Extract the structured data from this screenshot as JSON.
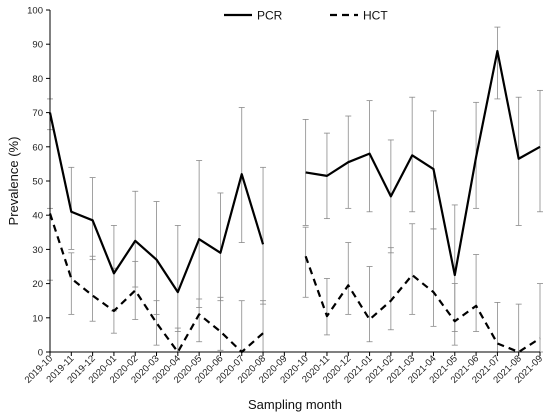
{
  "chart_data": {
    "type": "line",
    "xlabel": "Sampling month",
    "ylabel": "Prevalence (%)",
    "ylim": [
      0,
      100
    ],
    "yticks": [
      0,
      10,
      20,
      30,
      40,
      50,
      60,
      70,
      80,
      90,
      100
    ],
    "grid": false,
    "legend_position": "top-center",
    "categories": [
      "2019-10",
      "2019-11",
      "2019-12",
      "2020-01",
      "2020-02",
      "2020-03",
      "2020-04",
      "2020-05",
      "2020-06",
      "2020-07",
      "2020-08",
      "2020-09",
      "2020-10",
      "2020-11",
      "2020-12",
      "2021-01",
      "2021-02",
      "2021-03",
      "2021-04",
      "2021-05",
      "2021-06",
      "2021-07",
      "2021-08",
      "2021-09"
    ],
    "series": [
      {
        "name": "PCR",
        "line_style": "solid",
        "color": "#000000",
        "values": [
          70,
          41,
          38.5,
          23,
          32.5,
          27,
          17.5,
          33,
          29,
          52,
          31.5,
          null,
          52.5,
          51.5,
          55.5,
          58,
          45.5,
          57.5,
          53.5,
          22.5,
          57,
          88,
          56.5,
          60
        ],
        "error_low": [
          65,
          30,
          27,
          12,
          19,
          11,
          6,
          13,
          15,
          32,
          14,
          null,
          37,
          39,
          42,
          41,
          29,
          41,
          36,
          6,
          42,
          74,
          37,
          41
        ],
        "error_high": [
          74,
          54,
          51,
          37,
          47,
          44,
          37,
          56,
          46.5,
          71.5,
          54,
          null,
          68,
          64,
          69,
          73.5,
          62,
          74.5,
          70.5,
          43,
          73,
          95,
          74.5,
          76.5
        ]
      },
      {
        "name": "HCT",
        "line_style": "dashed",
        "color": "#000000",
        "values": [
          40.5,
          21.5,
          16.5,
          12,
          18,
          8.5,
          0,
          11,
          6,
          0,
          5.5,
          null,
          28,
          10.5,
          19.5,
          9.5,
          15,
          22.5,
          17.5,
          9,
          13.5,
          2.5,
          0,
          4
        ],
        "error_low": [
          21,
          11,
          9,
          5.5,
          9.5,
          2,
          0,
          3,
          0.5,
          0,
          0,
          null,
          16,
          5,
          11,
          3,
          6.5,
          11,
          7.5,
          2,
          6,
          0,
          0,
          0
        ],
        "error_high": [
          42,
          29,
          28,
          24.5,
          26.5,
          15,
          7,
          15.5,
          16,
          15,
          15,
          null,
          36.5,
          21.5,
          32,
          25,
          30.5,
          37.5,
          36,
          20,
          28.5,
          14.5,
          14,
          20
        ]
      }
    ]
  }
}
